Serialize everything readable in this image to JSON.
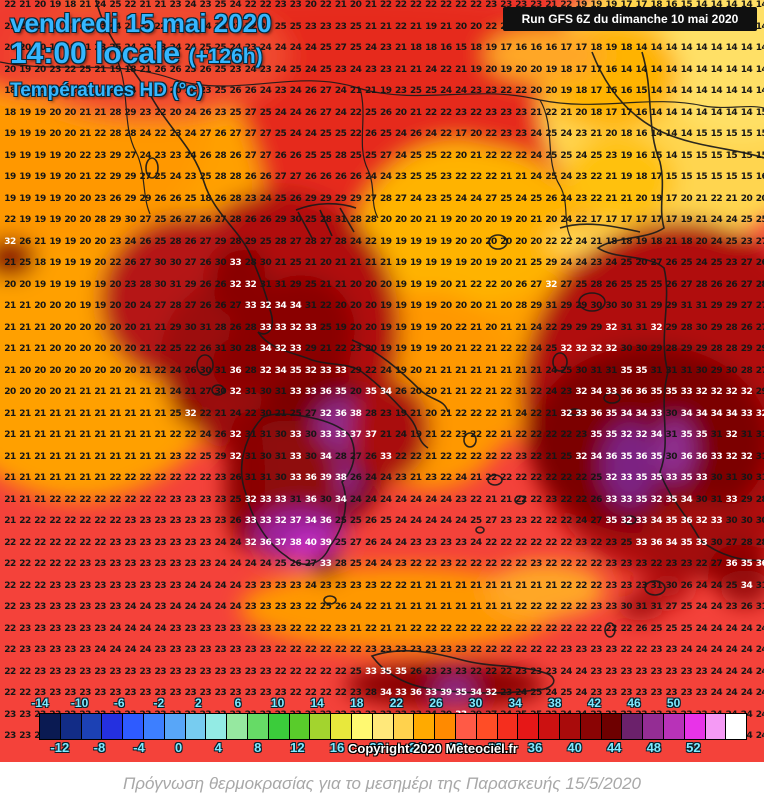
{
  "header": {
    "date_line": "vendredi 15 mai 2020",
    "time_line": "14:00 locale ",
    "time_offset": "(+126h)",
    "subtitle": "Températures HD (°c)",
    "run_info": "Run GFS 6Z du dimanche 10 mai 2020"
  },
  "footer": {
    "copyright": "Copyright 2020 Meteociel.fr",
    "caption": "Πρόγνωση θερμοκρασίας για το μεσημέρι της Παρασκευής 15/5/2020"
  },
  "colors": {
    "title_cyan": "#35b6ff",
    "legend_label_cyan": "#7fe9ff",
    "sea_salmon": "#f4423a",
    "sea_orange": "#ffa000",
    "black_sea_yellow": "#ffd54f",
    "hot_maroon": "#7c0202",
    "hot_purple": "#8e2d8e",
    "hot_magenta": "#cc33cc"
  },
  "legend": {
    "unit": "°c",
    "min": -14,
    "max": 52,
    "step": 2,
    "top_labels": [
      "-14",
      "-10",
      "-6",
      "-2",
      "2",
      "6",
      "10",
      "14",
      "18",
      "22",
      "26",
      "30",
      "34",
      "38",
      "42",
      "46",
      "50"
    ],
    "bottom_labels": [
      "-12",
      "-8",
      "-4",
      "0",
      "4",
      "8",
      "12",
      "16",
      "20",
      "24",
      "28",
      "32",
      "36",
      "40",
      "44",
      "48",
      "52"
    ],
    "cell_colors": [
      "#0a1a52",
      "#122c86",
      "#1c41b4",
      "#2430e0",
      "#2e5bff",
      "#3d7fff",
      "#58a6f8",
      "#77ccf0",
      "#93ebe4",
      "#96e8a0",
      "#66db66",
      "#3bcc3b",
      "#59cc2b",
      "#a3d42e",
      "#e8e83c",
      "#fff971",
      "#ffe87a",
      "#ffd24d",
      "#ffaa00",
      "#ff8a00",
      "#ff5a46",
      "#ff4d26",
      "#f52e1e",
      "#e61717",
      "#cc1111",
      "#a90b0b",
      "#8a0404",
      "#6e0000",
      "#6b216b",
      "#942d94",
      "#b832b8",
      "#e833e8",
      "#f59af5"
    ],
    "last_cell_color": "#ffffff"
  },
  "grid": {
    "white_threshold": 32,
    "rows": [
      "22 21 20 19 18 21 24 25 22 21 21 23 24 23 25 24 22 22 23 23 20 22 21 20 21 22 22 22 22 22 22 22 23 23 23 23 21 22 19 19 19 17 17 18 16 15 14 14 14 14 14",
      "21 21 20 19 19 21 23 24 23 22 22 23 23 24 24 23 22 23 25 25 23 23 23 25 21 21 22 21 19 21 20 20 22 22 22 22 20 22 19 19 19 19 19 17 16 14 14 14 14 14 14",
      "20 20 20 19 19 21 23 25 24 23 23 24 24 25 25 24 23 24 24 24 24 25 27 25 24 23 21 18 18 16 15 18 19 17 16 16 16 17 17 18 19 18 14 14 14 14 14 14 14 14 14",
      "20 19 20 23 22 25 21 19 18 21 26 26 23 26 25 23 24 23 24 25 24 25 23 24 23 23 21 21 24 22 21 19 20 19 20 20 19 18 17 17 16 14 14 14 14 14 14 14 14 14 14",
      "18 19 19 20 21 23 26 29 24 23 23 20 22 23 25 26 26 24 23 24 26 27 24 21 21 19 23 25 25 24 24 23 23 22 22 20 20 19 18 17 16 16 15 14 14 14 14 14 14 14 14",
      "18 19 19 20 20 21 21 28 29 23 22 20 24 26 23 25 27 25 24 24 26 27 24 22 25 26 20 21 22 22 23 22 23 23 23 21 22 21 20 18 17 17 16 14 14 14 14 14 14 14 15",
      "19 19 19 20 20 21 22 28 28 24 22 23 24 27 26 27 27 27 25 24 24 25 25 22 26 25 24 26 24 22 17 20 22 23 23 24 25 24 23 21 20 18 16 14 14 14 15 15 15 15 15",
      "19 19 19 19 20 22 23 29 27 24 23 23 24 26 28 26 27 27 26 26 25 25 28 25 25 27 24 25 25 22 20 21 22 22 22 24 25 25 24 25 23 19 16 15 14 15 15 15 15 15 15",
      "19 19 19 19 20 21 22 29 29 27 25 24 23 25 28 28 26 26 27 27 26 26 26 26 24 24 23 25 25 23 22 22 22 21 21 24 25 24 23 22 21 19 18 17 15 15 15 15 15 15 16",
      "19 19 19 19 20 20 23 26 29 29 26 26 25 18 26 28 23 24 25 26 29 29 29 29 27 28 27 24 23 25 24 24 27 25 24 25 26 24 23 22 21 21 20 19 17 20 21 22 21 20 20",
      "22 19 19 19 20 20 28 29 30 27 25 26 27 26 27 28 26 26 29 30 25 28 31 28 28 20 20 20 21 19 20 20 20 19 20 21 20 24 22 17 17 17 17 17 17 19 21 24 24 25 25",
      "32 26 21 19 19 20 20 23 24 26 25 28 26 27 29 28 29 25 28 27 28 27 28 24 22 19 19 19 19 19 20 20 20 20 20 20 22 22 24 21 18 18 19 18 21 18 20 24 25 23 27",
      "21 25 18 19 19 19 20 22 26 27 30 30 27 26 30 33 28 30 21 25 21 20 21 21 21 21 19 19 19 19 19 20 19 20 21 25 29 24 24 23 24 25 20 27 26 25 24 25 23 27 26",
      "20 20 19 19 19 19 19 20 23 28 30 31 29 26 26 32 32 31 31 29 25 21 21 20 20 20 19 19 19 20 21 22 22 20 26 27 32 27 25 28 26 25 25 25 26 27 28 26 26 27 28",
      "21 21 20 20 20 19 19 20 20 24 27 28 27 26 26 27 33 32 34 34 31 22 20 20 20 19 19 19 19 20 20 20 21 20 28 29 31 29 29 30 30 30 31 29 29 31 31 29 29 27 27",
      "21 21 21 20 20 20 20 20 20 21 21 29 30 31 28 26 28 33 33 32 33 25 19 20 20 19 19 19 19 20 22 21 20 21 21 24 22 29 29 29 32 31 31 32 29 28 30 29 28 26 27",
      "21 21 21 20 20 20 20 20 20 21 22 25 22 26 31 30 28 34 32 33 29 21 22 23 20 19 19 19 19 20 21 22 21 22 22 24 25 32 32 32 32 30 30 29 28 29 29 28 28 29 29",
      "21 20 20 20 20 20 20 20 20 21 22 24 26 30 31 36 28 32 34 35 32 33 33 29 22 24 19 20 21 21 21 21 21 21 21 21 24 25 30 31 31 35 35 31 31 31 30 29 30 28 27",
      "20 20 20 20 21 21 21 21 21 21 21 24 21 27 30 32 31 30 31 33 33 36 35 20 35 34 26 20 20 21 21 22 21 22 31 22 24 23 32 34 33 36 36 35 35 33 32 32 32 32 29",
      "21 21 21 21 21 21 21 21 21 21 21 25 32 22 21 24 22 30 21 25 27 32 36 38 28 23 19 21 20 21 22 22 22 21 24 22 21 32 33 36 35 34 34 33 30 34 34 34 34 33 32",
      "21 21 21 21 21 21 21 21 21 21 21 22 22 24 26 32 31 31 30 33 30 33 33 37 37 21 24 19 21 22 23 22 22 21 22 22 22 22 23 35 35 32 32 34 31 35 35 31 32 31 31",
      "21 21 21 21 21 21 21 21 21 21 21 23 22 25 29 32 31 30 31 33 30 34 28 27 26 33 22 22 21 22 22 22 22 22 23 22 21 25 32 34 36 35 36 35 30 36 36 33 32 32 31",
      "21 21 21 21 21 21 21 22 22 22 22 22 22 22 23 26 31 31 30 33 36 39 38 26 24 24 23 21 23 22 24 21 22 22 22 22 22 22 22 25 32 33 35 35 33 35 33 30 31 30 31",
      "21 21 21 22 22 22 22 22 22 22 22 23 23 23 23 25 32 33 33 31 36 30 34 24 24 24 24 24 24 24 23 22 21 21 22 22 23 22 22 26 33 33 35 32 35 34 30 31 33 29 28",
      "21 22 22 22 22 22 22 22 23 23 23 23 23 23 23 26 33 33 32 37 34 36 25 25 26 25 24 24 24 24 24 25 27 23 23 22 22 22 24 27 35 32 33 34 35 36 32 33 30 30 30",
      "22 22 22 22 22 22 22 23 23 23 23 23 23 23 24 24 32 36 37 38 40 39 25 27 26 24 24 23 23 23 23 24 22 22 22 22 22 22 23 22 23 25 33 36 34 35 33 30 27 28 28",
      "22 22 22 22 22 23 23 23 23 23 23 23 23 23 24 24 24 24 25 26 27 33 28 25 24 24 23 22 22 23 22 22 22 22 22 23 22 22 22 22 23 23 23 22 23 23 22 27 36 35 36",
      "22 22 22 23 23 23 23 23 23 23 23 23 24 24 24 24 23 23 23 23 24 23 23 23 23 22 22 21 21 21 21 21 21 21 21 21 21 22 22 22 23 23 23 31 30 26 24 24 25 34 31",
      "22 23 23 23 23 23 23 23 24 24 23 24 24 24 24 24 23 23 23 23 22 25 26 24 22 21 21 21 21 21 21 21 21 21 22 22 22 22 22 23 23 30 31 31 27 25 24 24 23 26 31",
      "22 23 23 23 23 23 23 24 24 24 24 23 23 23 23 23 23 23 23 22 22 22 23 21 22 21 21 22 22 22 22 22 22 22 22 22 22 22 22 22 22 22 26 25 25 25 24 24 24 24 24",
      "22 23 23 23 23 23 24 24 24 24 23 23 23 23 23 23 23 23 22 22 22 22 22 22 23 23 23 23 23 23 23 22 22 22 22 22 22 23 23 23 23 22 22 23 23 24 24 24 24 24 24",
      "22 22 23 23 23 23 23 23 23 23 23 23 23 23 23 23 23 23 22 22 22 22 22 25 33 35 35 26 23 23 23 22 22 22 23 23 23 24 24 23 23 23 23 23 23 23 23 24 24 24 24",
      "22 22 23 23 23 23 23 23 23 23 23 23 23 23 23 23 23 23 23 22 22 22 22 23 28 34 33 36 33 39 35 34 32 23 24 25 24 25 24 23 23 23 23 23 23 23 23 24 24 24 24",
      "23 23 23 23 23 23 23 23 23 23 23 23 23 23 23 23 23 23 23 23 22 22 22 22 22 23 23 23 24 30 33 29 27 24 25 25 23 24 24 23 23 23 23 23 23 23 23 24 24 24 24",
      "23 23 23 23 23 23 23 23 23 23 23 23 23 23 23 23 23 23 23 23 23 23 22 23 23 23 23 24 24 24 24 24 24 24 24 24 24 24 24 23 23 23 23 23 23 23 23 23 24 24 24"
    ]
  }
}
